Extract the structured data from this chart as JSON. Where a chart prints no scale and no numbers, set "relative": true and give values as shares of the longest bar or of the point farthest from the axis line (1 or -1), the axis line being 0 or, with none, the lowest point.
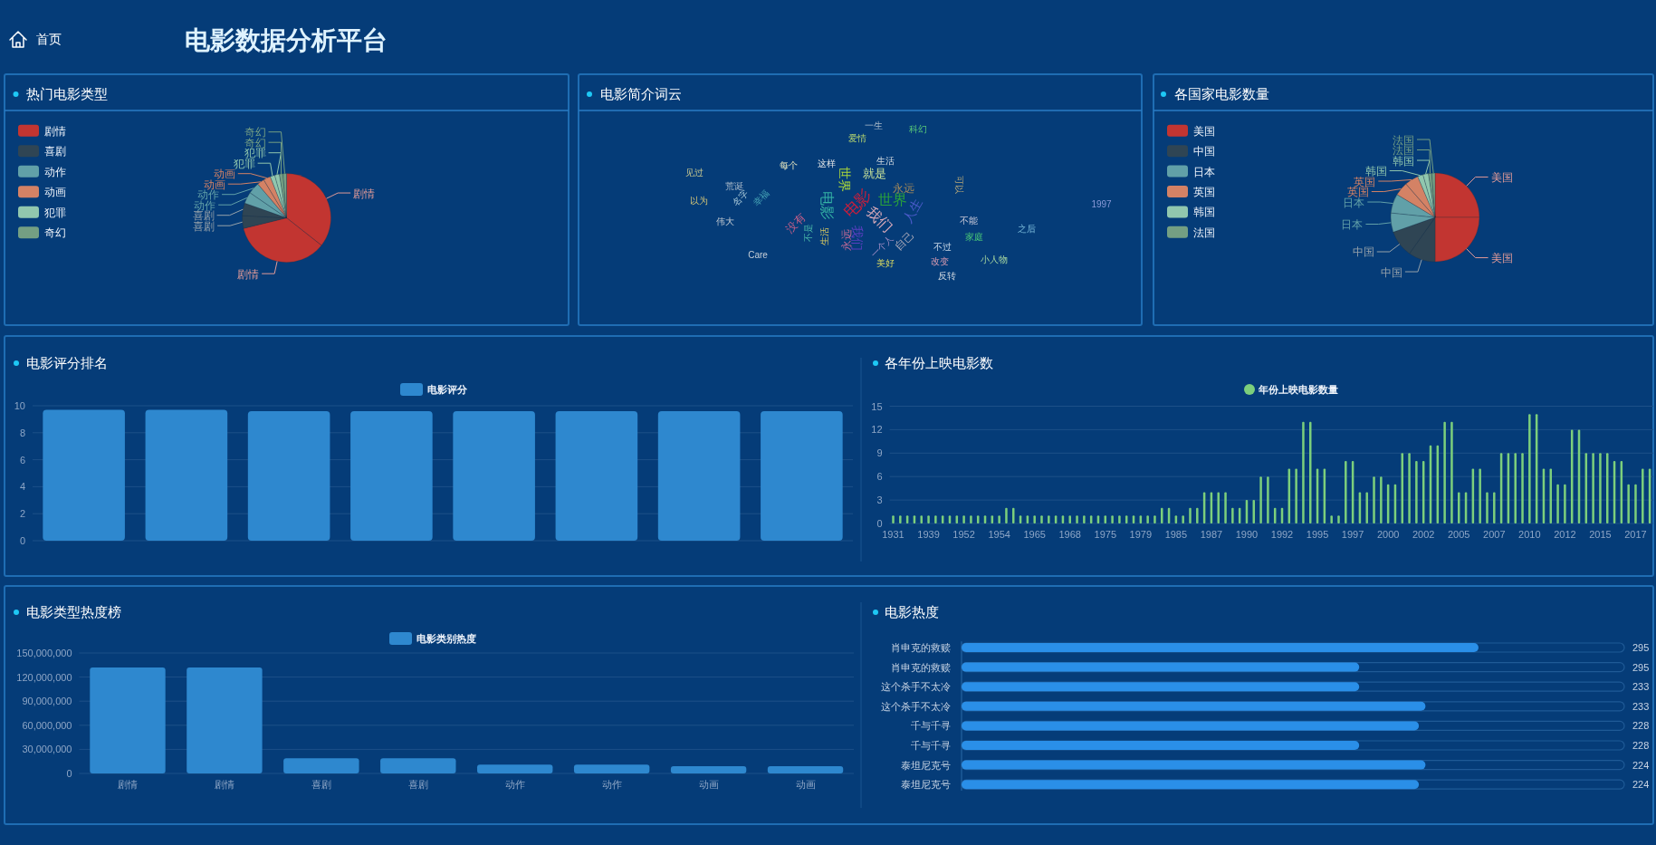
{
  "chart_data": [
    {
      "type": "other",
      "title": "电影数据分析平台",
      "annotations": [
        "首页"
      ]
    },
    {
      "type": "pie",
      "title": "热门电影类型",
      "categories": [
        "剧情",
        "剧情",
        "喜剧",
        "喜剧",
        "动作",
        "动作",
        "动画",
        "动画",
        "犯罪",
        "犯罪",
        "奇幻",
        "奇幻"
      ],
      "values": [
        35.6,
        35.6,
        4.6,
        4.6,
        4.2,
        4.2,
        2.6,
        2.6,
        1.7,
        1.7,
        1.3,
        1.3
      ],
      "colors": [
        "#c23531",
        "#c23531",
        "#2f4554",
        "#2f4554",
        "#61a0a8",
        "#61a0a8",
        "#d48265",
        "#d48265",
        "#91c7ae",
        "#91c7ae",
        "#749f83",
        "#749f83"
      ],
      "legend": "top left"
    },
    {
      "type": "other",
      "title": "电影简介词云",
      "annotations": [
        "电影",
        "我们",
        "世界",
        "就是",
        "生活",
        "永远",
        "电影",
        "世界",
        "我们",
        "永远",
        "没有",
        "不是",
        "生活",
        "这样",
        "爱情",
        "人生",
        "以为",
        "伟大",
        "Care",
        "小人物",
        "家庭",
        "反转",
        "改变",
        "美好",
        "1997",
        "荒诞",
        "见过",
        "每个",
        "可以",
        "科幻",
        "一生",
        "不能",
        "幸福",
        "名字",
        "不过",
        "之后",
        "自己",
        "一个人"
      ],
      "colors": [
        "#c81e3c",
        "#d7a9b9",
        "#2aa13c",
        "#c8e29a",
        "#d5dde2",
        "#a58a5a",
        "#35b4a5",
        "#a9d63c",
        "#5a3fc0",
        "#c46a96",
        "#c8608a",
        "#4ab8a8",
        "#d8c860",
        "#e8e8e8",
        "#b8d870",
        "#4a5ac8",
        "#d8c878",
        "#c0c8d0",
        "#c8d0d8",
        "#a8d8a0",
        "#4ac878",
        "#d0d8e0",
        "#d89ab0",
        "#d8d860",
        "#8a9ad8",
        "#a8b8c8",
        "#c8c890",
        "#e8e8c0",
        "#b8a878",
        "#58c878",
        "#a8b8c8",
        "#c8c8d8",
        "#48a8b8",
        "#a8c8d8",
        "#c8d8e8",
        "#78b8d8",
        "#a8a8b8",
        "#a890c8"
      ]
    },
    {
      "type": "pie",
      "title": "各国家电影数量",
      "categories": [
        "美国",
        "美国",
        "中国",
        "中国",
        "日本",
        "日本",
        "英国",
        "英国",
        "韩国",
        "韩国",
        "法国",
        "法国"
      ],
      "values": [
        25,
        25,
        9.8,
        9.8,
        7,
        7,
        5,
        5,
        2,
        2,
        1.2,
        1.2
      ],
      "colors": [
        "#c23531",
        "#c23531",
        "#2f4554",
        "#2f4554",
        "#61a0a8",
        "#61a0a8",
        "#d48265",
        "#d48265",
        "#91c7ae",
        "#91c7ae",
        "#749f83",
        "#749f83"
      ],
      "legend": "top left"
    },
    {
      "type": "bar",
      "title": "电影评分排名",
      "categories": [
        null,
        null,
        null,
        null,
        null,
        null,
        null,
        null
      ],
      "series": [
        {
          "name": "电影评分",
          "color": "#2e88cf",
          "values": [
            9.7,
            9.7,
            9.6,
            9.6,
            9.6,
            9.6,
            9.6,
            9.6
          ]
        }
      ],
      "ylim": [
        0,
        10
      ],
      "yticks": [
        0,
        2,
        4,
        6,
        8,
        10
      ],
      "grid": "y",
      "legend": "top"
    },
    {
      "type": "bar",
      "title": "各年份上映电影数",
      "categories": [
        "1931",
        null,
        null,
        null,
        null,
        "1939",
        null,
        null,
        null,
        null,
        "1952",
        null,
        null,
        null,
        null,
        "1954",
        null,
        null,
        null,
        null,
        "1965",
        null,
        null,
        null,
        null,
        "1968",
        null,
        null,
        null,
        null,
        "1975",
        null,
        null,
        null,
        null,
        "1979",
        null,
        null,
        null,
        null,
        "1985",
        null,
        null,
        null,
        null,
        "1987",
        null,
        null,
        null,
        null,
        "1990",
        null,
        null,
        null,
        null,
        "1992",
        null,
        null,
        null,
        null,
        "1995",
        null,
        null,
        null,
        null,
        "1997",
        null,
        null,
        null,
        null,
        "2000",
        null,
        null,
        null,
        null,
        "2002",
        null,
        null,
        null,
        null,
        "2005",
        null,
        null,
        null,
        null,
        "2007",
        null,
        null,
        null,
        null,
        "2010",
        null,
        null,
        null,
        null,
        "2012",
        null,
        null,
        null,
        null,
        "2015",
        null,
        null,
        null,
        null,
        "2017",
        null,
        null
      ],
      "series": [
        {
          "name": "年份上映电影数量",
          "color": "#7ccf7c",
          "values": [
            1,
            1,
            1,
            1,
            1,
            1,
            1,
            1,
            1,
            1,
            1,
            1,
            1,
            1,
            1,
            1,
            2,
            2,
            1,
            1,
            1,
            1,
            1,
            1,
            1,
            1,
            1,
            1,
            1,
            1,
            1,
            1,
            1,
            1,
            1,
            1,
            1,
            1,
            2,
            2,
            1,
            1,
            2,
            2,
            4,
            4,
            4,
            4,
            2,
            2,
            3,
            3,
            6,
            6,
            2,
            2,
            7,
            7,
            13,
            13,
            7,
            7,
            1,
            1,
            8,
            8,
            4,
            4,
            6,
            6,
            5,
            5,
            9,
            9,
            8,
            8,
            10,
            10,
            13,
            13,
            4,
            4,
            7,
            7,
            4,
            4,
            9,
            9,
            9,
            9,
            14,
            14,
            7,
            7,
            5,
            5,
            12,
            12,
            9,
            9,
            9,
            9,
            8,
            8,
            5,
            5,
            7,
            7
          ]
        }
      ],
      "ylim": [
        0,
        15
      ],
      "yticks": [
        0,
        3,
        6,
        9,
        12,
        15
      ],
      "grid": "y",
      "legend": "top"
    },
    {
      "type": "bar",
      "title": "电影类型热度榜",
      "categories": [
        "剧情",
        "剧情",
        "喜剧",
        "喜剧",
        "动作",
        "动作",
        "动画",
        "动画"
      ],
      "series": [
        {
          "name": "电影类别热度",
          "color": "#2e88cf",
          "values": [
            132000000,
            132000000,
            19000000,
            19000000,
            11000000,
            11000000,
            9000000,
            9000000
          ]
        }
      ],
      "ylim": [
        0,
        150000000
      ],
      "yticks": [
        0,
        {
          "value": 30000000,
          "label": "30,000,000"
        },
        {
          "value": 60000000,
          "label": "60,000,000"
        },
        {
          "value": 90000000,
          "label": "90,000,000"
        },
        {
          "value": 120000000,
          "label": "120,000,000"
        },
        {
          "value": 150000000,
          "label": "150,000,000"
        }
      ],
      "grid": "y",
      "legend": "top"
    },
    {
      "type": "bar",
      "title": "电影热度",
      "orientation": "horizontal",
      "relative": true,
      "categories": [
        "肖申克的救赎",
        "肖申克的救赎",
        "这个杀手不太冷",
        "这个杀手不太冷",
        "千与千寻",
        "千与千寻",
        "泰坦尼克号",
        "泰坦尼克号"
      ],
      "series": [
        {
          "color": "#1f5a96",
          "values": [
            1,
            1,
            1,
            1,
            1,
            1,
            1,
            1
          ]
        },
        {
          "color": "#2a8fe8",
          "values": [
            0.78,
            0.6,
            0.6,
            0.7,
            0.69,
            0.6,
            0.7,
            0.69
          ]
        }
      ],
      "annotations": [
        "295",
        "295",
        "233",
        "233",
        "228",
        "228",
        "224",
        "224"
      ]
    }
  ]
}
